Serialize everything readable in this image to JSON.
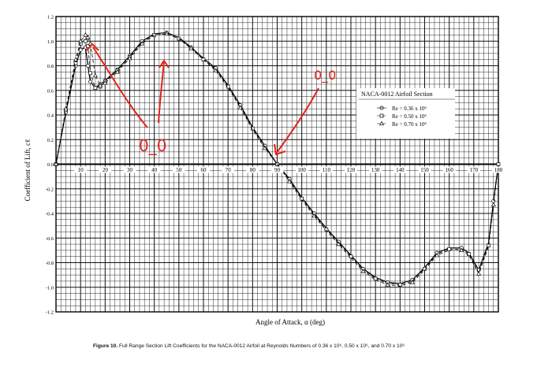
{
  "chart_data": {
    "type": "line",
    "xlabel": "Angle of Attack, α (deg)",
    "ylabel": "Coefficient of Lift, cℓ",
    "xlim": [
      0,
      180
    ],
    "ylim": [
      -1.2,
      1.2
    ],
    "x_ticks": [
      10,
      20,
      30,
      40,
      50,
      60,
      70,
      80,
      90,
      100,
      110,
      120,
      130,
      140,
      150,
      160,
      170,
      180
    ],
    "y_ticks": [
      -1.2,
      -1.0,
      -0.8,
      -0.6,
      -0.4,
      -0.2,
      0.0,
      0.2,
      0.4,
      0.6,
      0.8,
      1.0,
      1.2
    ],
    "y_tick_labels": [
      "-1.2",
      "-1.0",
      "-0.8",
      "-0.6",
      "-0.4",
      "-0.2",
      "0.0",
      "0.2",
      "0.4",
      "0.6",
      "0.8",
      "1.0",
      "1.2"
    ],
    "grid": true,
    "legend_placement": "top-right",
    "legend_title": "NACA-0012 Airfoil Section",
    "series": [
      {
        "name": "Re = 0.36 x 10⁶",
        "marker": "circle",
        "line": "solid",
        "x": [
          0,
          4,
          8,
          10,
          12,
          13,
          14,
          16,
          18,
          20,
          25,
          30,
          35,
          40,
          45,
          50,
          55,
          60,
          65,
          70,
          75,
          80,
          85,
          90,
          95,
          100,
          105,
          110,
          115,
          120,
          125,
          130,
          135,
          140,
          145,
          150,
          155,
          160,
          165,
          168,
          172,
          176,
          178,
          180
        ],
        "y": [
          0.0,
          0.42,
          0.8,
          0.93,
          0.95,
          0.8,
          0.67,
          0.62,
          0.65,
          0.68,
          0.77,
          0.88,
          1.0,
          1.06,
          1.07,
          1.03,
          0.95,
          0.86,
          0.78,
          0.64,
          0.48,
          0.3,
          0.15,
          0.0,
          -0.12,
          -0.27,
          -0.4,
          -0.52,
          -0.63,
          -0.74,
          -0.85,
          -0.92,
          -0.96,
          -0.97,
          -0.94,
          -0.84,
          -0.72,
          -0.68,
          -0.68,
          -0.72,
          -0.86,
          -0.64,
          -0.3,
          0.0
        ]
      },
      {
        "name": "Re = 0.50 x 10⁶",
        "marker": "square",
        "line": "dashed",
        "x": [
          0,
          4,
          8,
          10,
          12,
          13,
          14,
          16,
          18,
          20,
          25,
          30,
          35,
          40,
          45,
          50,
          55,
          60,
          65,
          70,
          75,
          80,
          85,
          90,
          95,
          100,
          105,
          110,
          115,
          120,
          125,
          130,
          135,
          140,
          145,
          150,
          155,
          160,
          165,
          168,
          172,
          176,
          178,
          180
        ],
        "y": [
          0.0,
          0.44,
          0.82,
          0.98,
          1.0,
          0.96,
          0.74,
          0.62,
          0.63,
          0.67,
          0.76,
          0.87,
          0.99,
          1.05,
          1.06,
          1.02,
          0.94,
          0.85,
          0.77,
          0.63,
          0.47,
          0.29,
          0.14,
          0.0,
          -0.13,
          -0.28,
          -0.41,
          -0.53,
          -0.64,
          -0.75,
          -0.86,
          -0.93,
          -0.97,
          -0.98,
          -0.95,
          -0.85,
          -0.73,
          -0.69,
          -0.69,
          -0.73,
          -0.88,
          -0.66,
          -0.32,
          0.0
        ]
      },
      {
        "name": "Re = 0.70 x 10⁶",
        "marker": "triangle",
        "line": "dashed",
        "x": [
          0,
          4,
          8,
          10,
          12,
          13,
          14,
          16,
          18,
          20,
          25,
          30,
          35,
          40,
          45,
          50,
          55,
          60,
          65,
          70,
          75,
          80,
          85,
          90,
          95,
          100,
          105,
          110,
          115,
          120,
          125,
          130,
          135,
          140,
          145,
          150,
          155,
          160,
          165,
          168,
          172,
          176,
          178,
          180
        ],
        "y": [
          0.0,
          0.45,
          0.85,
          1.0,
          1.05,
          1.03,
          0.98,
          0.72,
          0.64,
          0.66,
          0.75,
          0.86,
          0.98,
          1.05,
          1.06,
          1.02,
          0.94,
          0.85,
          0.76,
          0.62,
          0.46,
          0.28,
          0.13,
          0.0,
          -0.14,
          -0.29,
          -0.42,
          -0.54,
          -0.65,
          -0.76,
          -0.87,
          -0.94,
          -0.98,
          -0.99,
          -0.96,
          -0.86,
          -0.74,
          -0.7,
          -0.7,
          -0.74,
          -0.89,
          -0.67,
          -0.33,
          0.0
        ]
      }
    ],
    "annotations": [
      {
        "text": "0_0",
        "color": "#e2231a",
        "points_to": [
          [
            12,
            1.0
          ],
          [
            40,
            1.05
          ]
        ]
      },
      {
        "text": "0_0",
        "color": "#e2231a",
        "points_to": [
          [
            90,
            0.05
          ]
        ]
      }
    ],
    "caption": {
      "bold_part": "Figure 10.",
      "text": " Full Range Section Lift Coefficients for the NACA-0012 Airfoil at Reynolds Numbers of 0.36 x 10⁶, 0.50 x 10⁶, and 0.70 x 10⁶"
    }
  }
}
